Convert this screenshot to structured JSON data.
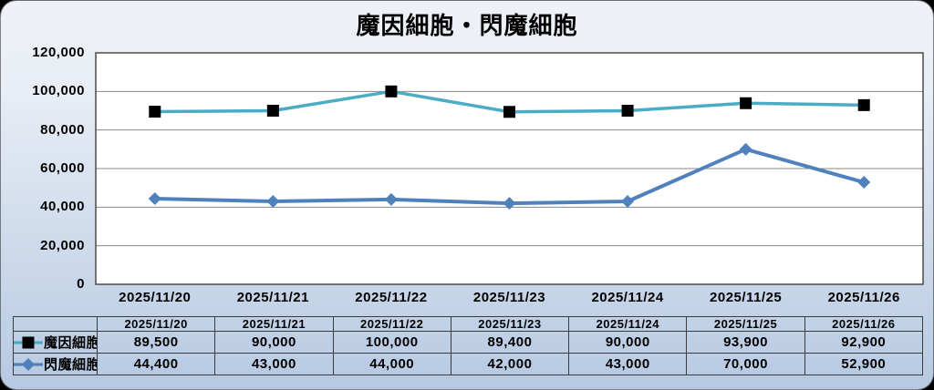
{
  "title": "魔因細胞・閃魔細胞",
  "colors": {
    "card_bg_top": "#eef1f7",
    "card_bg_bottom": "#b6c9e2",
    "plot_bg": "#ffffff",
    "gridline": "#878787",
    "plot_border": "#4a4a4a",
    "table_border": "#3c3c3c",
    "text": "#000000",
    "series1": "#4BACC6",
    "series2": "#4F81BD",
    "series1_marker": "#000000",
    "series2_marker": "#4F81BD"
  },
  "chart_data": {
    "type": "line",
    "title": "魔因細胞・閃魔細胞",
    "categories": [
      "2025/11/20",
      "2025/11/21",
      "2025/11/22",
      "2025/11/23",
      "2025/11/24",
      "2025/11/25",
      "2025/11/26"
    ],
    "series": [
      {
        "name": "魔因細胞",
        "color": "#4BACC6",
        "marker": "square",
        "marker_color": "#000000",
        "line_width": 3.5,
        "values": [
          89500,
          90000,
          100000,
          89400,
          90000,
          93900,
          92900
        ]
      },
      {
        "name": "閃魔細胞",
        "color": "#4F81BD",
        "marker": "diamond",
        "marker_color": "#4F81BD",
        "line_width": 4,
        "values": [
          44400,
          43000,
          44000,
          42000,
          43000,
          70000,
          52900
        ]
      }
    ],
    "xlabel": "",
    "ylabel": "",
    "ylim": [
      0,
      120000
    ],
    "ytick_step": 20000,
    "ytick_labels_top_to_bottom": [
      "120,000",
      "100,000",
      "80,000",
      "60,000",
      "40,000",
      "20,000",
      "0"
    ],
    "grid": true,
    "legend_position": "table-left-column"
  },
  "table": {
    "header_dates": [
      "2025/11/20",
      "2025/11/21",
      "2025/11/22",
      "2025/11/23",
      "2025/11/24",
      "2025/11/25",
      "2025/11/26"
    ],
    "rows": [
      {
        "label": "魔因細胞",
        "values": [
          "89,500",
          "90,000",
          "100,000",
          "89,400",
          "90,000",
          "93,900",
          "92,900"
        ]
      },
      {
        "label": "閃魔細胞",
        "values": [
          "44,400",
          "43,000",
          "44,000",
          "42,000",
          "43,000",
          "70,000",
          "52,900"
        ]
      }
    ]
  }
}
